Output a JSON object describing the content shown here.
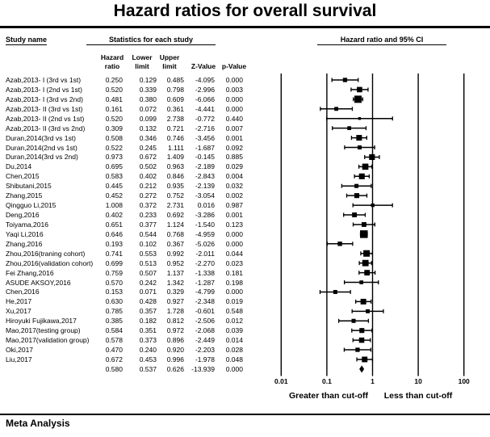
{
  "title": "Hazard ratios for overall survival",
  "section_headers": {
    "study": "Study name",
    "stats": "Statistics for each study",
    "plot": "Hazard ratio and 95% CI"
  },
  "columns": {
    "hr1": "Hazard",
    "hr2": "ratio",
    "lo1": "Lower",
    "lo2": "limit",
    "up1": "Upper",
    "up2": "limit",
    "z": "Z-Value",
    "p": "p-Value"
  },
  "axis": {
    "ticks": [
      "0.01",
      "0.1",
      "1",
      "10",
      "100"
    ],
    "left_label": "Greater than cut-off",
    "right_label": "Less than cut-off"
  },
  "footer": {
    "brand": "Meta Analysis"
  },
  "colors": {
    "ink": "#000000",
    "background": "#ffffff"
  },
  "chart_data": {
    "type": "forest",
    "x_scale": "log10",
    "xlim": [
      0.01,
      100
    ],
    "x_ticks": [
      0.01,
      0.1,
      1,
      10,
      100
    ],
    "studies": [
      {
        "name": "Azab,2013- I (3rd vs 1st)",
        "hr": "0.250",
        "lower": "0.129",
        "upper": "0.485",
        "z": "-4.095",
        "p": "0.000"
      },
      {
        "name": "Azab,2013- I (2nd vs 1st)",
        "hr": "0.520",
        "lower": "0.339",
        "upper": "0.798",
        "z": "-2.996",
        "p": "0.003"
      },
      {
        "name": "Azab,2013- I (3rd vs 2nd)",
        "hr": "0.481",
        "lower": "0.380",
        "upper": "0.609",
        "z": "-6.066",
        "p": "0.000"
      },
      {
        "name": "Azab,2013- II (3rd vs 1st)",
        "hr": "0.161",
        "lower": "0.072",
        "upper": "0.361",
        "z": "-4.441",
        "p": "0.000"
      },
      {
        "name": "Azab,2013- II (2nd vs 1st)",
        "hr": "0.520",
        "lower": "0.099",
        "upper": "2.738",
        "z": "-0.772",
        "p": "0.440"
      },
      {
        "name": "Azab,2013- II (3rd vs 2nd)",
        "hr": "0.309",
        "lower": "0.132",
        "upper": "0.721",
        "z": "-2.716",
        "p": "0.007"
      },
      {
        "name": "Duran,2014(3rd vs 1st)",
        "hr": "0.508",
        "lower": "0.346",
        "upper": "0.746",
        "z": "-3.456",
        "p": "0.001"
      },
      {
        "name": "Duran,2014(2nd vs 1st)",
        "hr": "0.522",
        "lower": "0.245",
        "upper": "1.111",
        "z": "-1.687",
        "p": "0.092"
      },
      {
        "name": "Duran,2014(3rd vs 2nd)",
        "hr": "0.973",
        "lower": "0.672",
        "upper": "1.409",
        "z": "-0.145",
        "p": "0.885"
      },
      {
        "name": "Du,2014",
        "hr": "0.695",
        "lower": "0.502",
        "upper": "0.963",
        "z": "-2.189",
        "p": "0.029"
      },
      {
        "name": "Chen,2015",
        "hr": "0.583",
        "lower": "0.402",
        "upper": "0.846",
        "z": "-2.843",
        "p": "0.004"
      },
      {
        "name": "Shibutani,2015",
        "hr": "0.445",
        "lower": "0.212",
        "upper": "0.935",
        "z": "-2.139",
        "p": "0.032"
      },
      {
        "name": "Zhang,2015",
        "hr": "0.452",
        "lower": "0.272",
        "upper": "0.752",
        "z": "-3.054",
        "p": "0.002"
      },
      {
        "name": "Qingguo Li,2015",
        "hr": "1.008",
        "lower": "0.372",
        "upper": "2.731",
        "z": "0.016",
        "p": "0.987"
      },
      {
        "name": "Deng,2016",
        "hr": "0.402",
        "lower": "0.233",
        "upper": "0.692",
        "z": "-3.286",
        "p": "0.001"
      },
      {
        "name": "Toiyama,2016",
        "hr": "0.651",
        "lower": "0.377",
        "upper": "1.124",
        "z": "-1.540",
        "p": "0.123"
      },
      {
        "name": "Yaqi Li,2016",
        "hr": "0.646",
        "lower": "0.544",
        "upper": "0.768",
        "z": "-4.959",
        "p": "0.000"
      },
      {
        "name": "Zhang,2016",
        "hr": "0.193",
        "lower": "0.102",
        "upper": "0.367",
        "z": "-5.026",
        "p": "0.000"
      },
      {
        "name": "Zhou,2016(traning cohort)",
        "hr": "0.741",
        "lower": "0.553",
        "upper": "0.992",
        "z": "-2.011",
        "p": "0.044"
      },
      {
        "name": "Zhou,2016(validation cohort)",
        "hr": "0.699",
        "lower": "0.513",
        "upper": "0.952",
        "z": "-2.270",
        "p": "0.023"
      },
      {
        "name": "Fei Zhang,2016",
        "hr": "0.759",
        "lower": "0.507",
        "upper": "1.137",
        "z": "-1.338",
        "p": "0.181"
      },
      {
        "name": "ASUDE AKSOY,2016",
        "hr": "0.570",
        "lower": "0.242",
        "upper": "1.342",
        "z": "-1.287",
        "p": "0.198"
      },
      {
        "name": "Chen,2016",
        "hr": "0.153",
        "lower": "0.071",
        "upper": "0.329",
        "z": "-4.799",
        "p": "0.000"
      },
      {
        "name": "He,2017",
        "hr": "0.630",
        "lower": "0.428",
        "upper": "0.927",
        "z": "-2.348",
        "p": "0.019"
      },
      {
        "name": "Xu,2017",
        "hr": "0.785",
        "lower": "0.357",
        "upper": "1.728",
        "z": "-0.601",
        "p": "0.548"
      },
      {
        "name": "Hiroyuki Fujikawa,2017",
        "hr": "0.385",
        "lower": "0.182",
        "upper": "0.812",
        "z": "-2.506",
        "p": "0.012"
      },
      {
        "name": "Mao,2017(testing group)",
        "hr": "0.584",
        "lower": "0.351",
        "upper": "0.972",
        "z": "-2.068",
        "p": "0.039"
      },
      {
        "name": "Mao,2017(validation group)",
        "hr": "0.578",
        "lower": "0.373",
        "upper": "0.896",
        "z": "-2.449",
        "p": "0.014"
      },
      {
        "name": "Oki,2017",
        "hr": "0.470",
        "lower": "0.240",
        "upper": "0.920",
        "z": "-2.203",
        "p": "0.028"
      },
      {
        "name": "Liu,2017",
        "hr": "0.672",
        "lower": "0.453",
        "upper": "0.996",
        "z": "-1.978",
        "p": "0.048"
      }
    ],
    "overall": {
      "name": "",
      "hr": "0.580",
      "lower": "0.537",
      "upper": "0.626",
      "z": "-13.939",
      "p": "0.000"
    }
  }
}
